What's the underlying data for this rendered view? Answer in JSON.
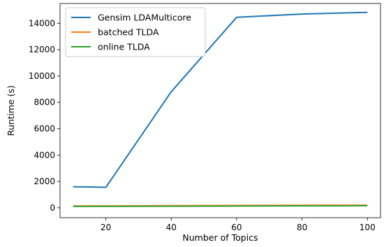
{
  "chart_data": {
    "type": "line",
    "title": "",
    "xlabel": "Number of Topics",
    "ylabel": "Runtime (s)",
    "xlim": [
      6,
      104
    ],
    "ylim": [
      -750,
      15500
    ],
    "xticks": [
      20,
      40,
      60,
      80,
      100
    ],
    "yticks": [
      0,
      2000,
      4000,
      6000,
      8000,
      10000,
      12000,
      14000
    ],
    "grid": false,
    "legend_position": "top-left",
    "x": [
      10,
      20,
      40,
      60,
      80,
      100
    ],
    "series": [
      {
        "name": "Gensim LDAMulticore",
        "color": "#1f77b4",
        "values": [
          1600,
          1550,
          8800,
          14450,
          14700,
          14830
        ]
      },
      {
        "name": "batched TLDA",
        "color": "#ff7f0e",
        "values": [
          140,
          145,
          160,
          175,
          185,
          195
        ]
      },
      {
        "name": "online TLDA",
        "color": "#2ca02c",
        "values": [
          110,
          115,
          125,
          140,
          150,
          160
        ]
      }
    ]
  }
}
